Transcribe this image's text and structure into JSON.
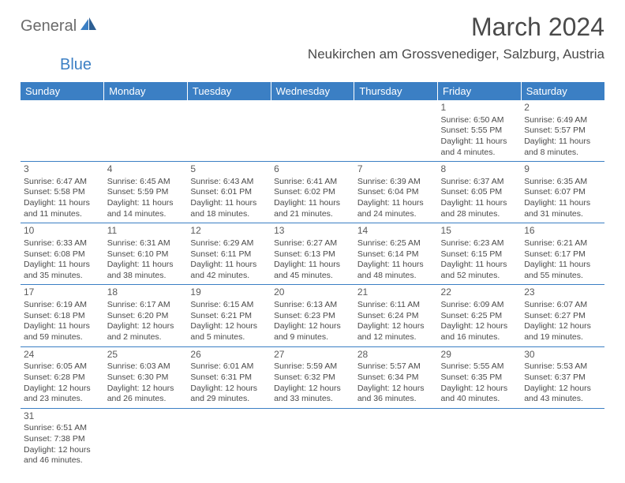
{
  "logo": {
    "part1": "General",
    "part2": "Blue"
  },
  "title": "March 2024",
  "location": "Neukirchen am Grossvenediger, Salzburg, Austria",
  "headers": [
    "Sunday",
    "Monday",
    "Tuesday",
    "Wednesday",
    "Thursday",
    "Friday",
    "Saturday"
  ],
  "colors": {
    "header_bg": "#3b7fc4",
    "header_fg": "#ffffff",
    "border": "#3b7fc4",
    "text": "#4a4a4a",
    "logo_gray": "#6b6b6b",
    "logo_blue": "#3b7fc4"
  },
  "weeks": [
    [
      null,
      null,
      null,
      null,
      null,
      {
        "n": "1",
        "sr": "Sunrise: 6:50 AM",
        "ss": "Sunset: 5:55 PM",
        "dl": "Daylight: 11 hours and 4 minutes."
      },
      {
        "n": "2",
        "sr": "Sunrise: 6:49 AM",
        "ss": "Sunset: 5:57 PM",
        "dl": "Daylight: 11 hours and 8 minutes."
      }
    ],
    [
      {
        "n": "3",
        "sr": "Sunrise: 6:47 AM",
        "ss": "Sunset: 5:58 PM",
        "dl": "Daylight: 11 hours and 11 minutes."
      },
      {
        "n": "4",
        "sr": "Sunrise: 6:45 AM",
        "ss": "Sunset: 5:59 PM",
        "dl": "Daylight: 11 hours and 14 minutes."
      },
      {
        "n": "5",
        "sr": "Sunrise: 6:43 AM",
        "ss": "Sunset: 6:01 PM",
        "dl": "Daylight: 11 hours and 18 minutes."
      },
      {
        "n": "6",
        "sr": "Sunrise: 6:41 AM",
        "ss": "Sunset: 6:02 PM",
        "dl": "Daylight: 11 hours and 21 minutes."
      },
      {
        "n": "7",
        "sr": "Sunrise: 6:39 AM",
        "ss": "Sunset: 6:04 PM",
        "dl": "Daylight: 11 hours and 24 minutes."
      },
      {
        "n": "8",
        "sr": "Sunrise: 6:37 AM",
        "ss": "Sunset: 6:05 PM",
        "dl": "Daylight: 11 hours and 28 minutes."
      },
      {
        "n": "9",
        "sr": "Sunrise: 6:35 AM",
        "ss": "Sunset: 6:07 PM",
        "dl": "Daylight: 11 hours and 31 minutes."
      }
    ],
    [
      {
        "n": "10",
        "sr": "Sunrise: 6:33 AM",
        "ss": "Sunset: 6:08 PM",
        "dl": "Daylight: 11 hours and 35 minutes."
      },
      {
        "n": "11",
        "sr": "Sunrise: 6:31 AM",
        "ss": "Sunset: 6:10 PM",
        "dl": "Daylight: 11 hours and 38 minutes."
      },
      {
        "n": "12",
        "sr": "Sunrise: 6:29 AM",
        "ss": "Sunset: 6:11 PM",
        "dl": "Daylight: 11 hours and 42 minutes."
      },
      {
        "n": "13",
        "sr": "Sunrise: 6:27 AM",
        "ss": "Sunset: 6:13 PM",
        "dl": "Daylight: 11 hours and 45 minutes."
      },
      {
        "n": "14",
        "sr": "Sunrise: 6:25 AM",
        "ss": "Sunset: 6:14 PM",
        "dl": "Daylight: 11 hours and 48 minutes."
      },
      {
        "n": "15",
        "sr": "Sunrise: 6:23 AM",
        "ss": "Sunset: 6:15 PM",
        "dl": "Daylight: 11 hours and 52 minutes."
      },
      {
        "n": "16",
        "sr": "Sunrise: 6:21 AM",
        "ss": "Sunset: 6:17 PM",
        "dl": "Daylight: 11 hours and 55 minutes."
      }
    ],
    [
      {
        "n": "17",
        "sr": "Sunrise: 6:19 AM",
        "ss": "Sunset: 6:18 PM",
        "dl": "Daylight: 11 hours and 59 minutes."
      },
      {
        "n": "18",
        "sr": "Sunrise: 6:17 AM",
        "ss": "Sunset: 6:20 PM",
        "dl": "Daylight: 12 hours and 2 minutes."
      },
      {
        "n": "19",
        "sr": "Sunrise: 6:15 AM",
        "ss": "Sunset: 6:21 PM",
        "dl": "Daylight: 12 hours and 5 minutes."
      },
      {
        "n": "20",
        "sr": "Sunrise: 6:13 AM",
        "ss": "Sunset: 6:23 PM",
        "dl": "Daylight: 12 hours and 9 minutes."
      },
      {
        "n": "21",
        "sr": "Sunrise: 6:11 AM",
        "ss": "Sunset: 6:24 PM",
        "dl": "Daylight: 12 hours and 12 minutes."
      },
      {
        "n": "22",
        "sr": "Sunrise: 6:09 AM",
        "ss": "Sunset: 6:25 PM",
        "dl": "Daylight: 12 hours and 16 minutes."
      },
      {
        "n": "23",
        "sr": "Sunrise: 6:07 AM",
        "ss": "Sunset: 6:27 PM",
        "dl": "Daylight: 12 hours and 19 minutes."
      }
    ],
    [
      {
        "n": "24",
        "sr": "Sunrise: 6:05 AM",
        "ss": "Sunset: 6:28 PM",
        "dl": "Daylight: 12 hours and 23 minutes."
      },
      {
        "n": "25",
        "sr": "Sunrise: 6:03 AM",
        "ss": "Sunset: 6:30 PM",
        "dl": "Daylight: 12 hours and 26 minutes."
      },
      {
        "n": "26",
        "sr": "Sunrise: 6:01 AM",
        "ss": "Sunset: 6:31 PM",
        "dl": "Daylight: 12 hours and 29 minutes."
      },
      {
        "n": "27",
        "sr": "Sunrise: 5:59 AM",
        "ss": "Sunset: 6:32 PM",
        "dl": "Daylight: 12 hours and 33 minutes."
      },
      {
        "n": "28",
        "sr": "Sunrise: 5:57 AM",
        "ss": "Sunset: 6:34 PM",
        "dl": "Daylight: 12 hours and 36 minutes."
      },
      {
        "n": "29",
        "sr": "Sunrise: 5:55 AM",
        "ss": "Sunset: 6:35 PM",
        "dl": "Daylight: 12 hours and 40 minutes."
      },
      {
        "n": "30",
        "sr": "Sunrise: 5:53 AM",
        "ss": "Sunset: 6:37 PM",
        "dl": "Daylight: 12 hours and 43 minutes."
      }
    ],
    [
      {
        "n": "31",
        "sr": "Sunrise: 6:51 AM",
        "ss": "Sunset: 7:38 PM",
        "dl": "Daylight: 12 hours and 46 minutes."
      },
      null,
      null,
      null,
      null,
      null,
      null
    ]
  ]
}
